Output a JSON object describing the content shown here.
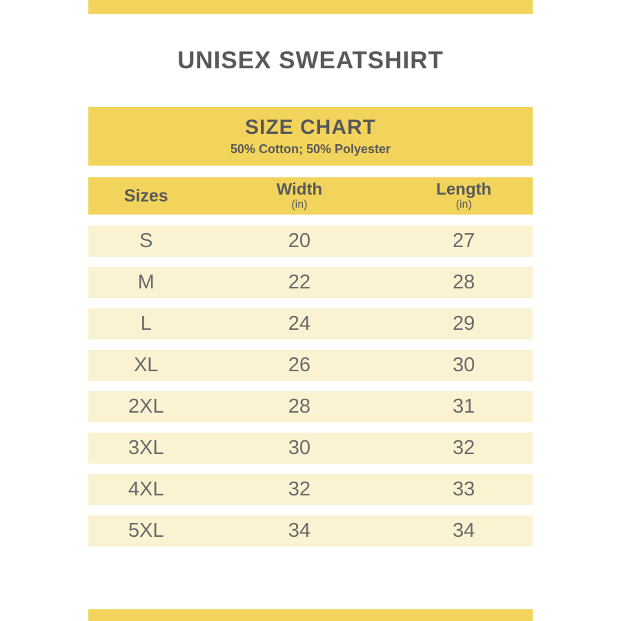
{
  "page": {
    "title": "UNISEX SWEATSHIRT"
  },
  "size_chart": {
    "heading": "SIZE CHART",
    "subheading": "50% Cotton; 50% Polyester",
    "columns": [
      {
        "label": "Sizes",
        "unit": ""
      },
      {
        "label": "Width",
        "unit": "(in)"
      },
      {
        "label": "Length",
        "unit": "(in)"
      }
    ],
    "rows": [
      {
        "size": "S",
        "width": "20",
        "length": "27"
      },
      {
        "size": "M",
        "width": "22",
        "length": "28"
      },
      {
        "size": "L",
        "width": "24",
        "length": "29"
      },
      {
        "size": "XL",
        "width": "26",
        "length": "30"
      },
      {
        "size": "2XL",
        "width": "28",
        "length": "31"
      },
      {
        "size": "3XL",
        "width": "30",
        "length": "32"
      },
      {
        "size": "4XL",
        "width": "32",
        "length": "33"
      },
      {
        "size": "5XL",
        "width": "34",
        "length": "34"
      }
    ]
  },
  "chart_data": {
    "type": "table",
    "title": "SIZE CHART",
    "subtitle": "50% Cotton; 50% Polyester",
    "columns": [
      "Sizes",
      "Width (in)",
      "Length (in)"
    ],
    "rows": [
      [
        "S",
        20,
        27
      ],
      [
        "M",
        22,
        28
      ],
      [
        "L",
        24,
        29
      ],
      [
        "XL",
        26,
        30
      ],
      [
        "2XL",
        28,
        31
      ],
      [
        "3XL",
        30,
        32
      ],
      [
        "4XL",
        32,
        33
      ],
      [
        "5XL",
        34,
        34
      ]
    ]
  },
  "colors": {
    "accent_yellow": "#F2D45C",
    "row_cream": "#FBF2D1",
    "heading_text": "#58585A",
    "data_text": "#6A6A6C"
  }
}
